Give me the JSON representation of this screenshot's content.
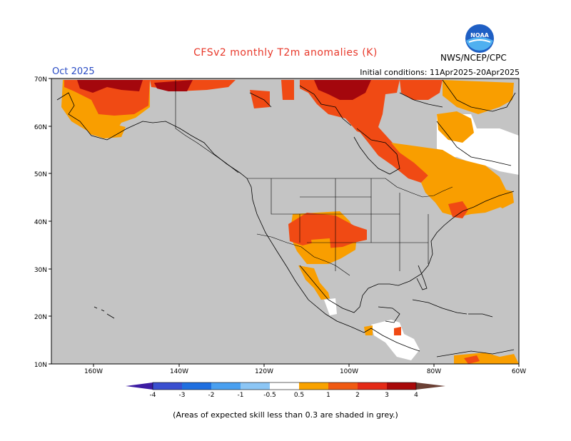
{
  "header": {
    "title": "CFSv2 monthly T2m anomalies (K)",
    "month": "Oct 2025",
    "initial_conditions": "Initial conditions: 11Apr2025-20Apr2025",
    "agency": "NWS/NCEP/CPC",
    "logo_text": "NOAA"
  },
  "axes": {
    "lat_labels": [
      "70N",
      "60N",
      "50N",
      "40N",
      "30N",
      "20N",
      "10N"
    ],
    "lon_labels": [
      "160W",
      "140W",
      "120W",
      "100W",
      "80W",
      "60W"
    ]
  },
  "colorbar": {
    "ticks": [
      "-4",
      "-3",
      "-2",
      "-1",
      "-0.5",
      "0.5",
      "1",
      "2",
      "3",
      "4"
    ],
    "colors": [
      "#3d1ca3",
      "#3a4fd0",
      "#1f6fe0",
      "#4aa0f0",
      "#8cc6f5",
      "#ffffff",
      "#f9a200",
      "#f05a12",
      "#e42a17",
      "#a8090a",
      "#c8a090",
      "#6b4035"
    ]
  },
  "legend_note": "(Areas of expected skill less than 0.3 are shaded in grey.)",
  "colors": {
    "grey_mask": "#c4c4c4",
    "anom_0_5_1": "#f99e00",
    "anom_1_2": "#f04a14",
    "anom_2_3": "#e52a17",
    "anom_3_4": "#a4070d",
    "land_white": "#ffffff",
    "title_red": "#e8382a",
    "month_blue": "#2a4cc4"
  }
}
